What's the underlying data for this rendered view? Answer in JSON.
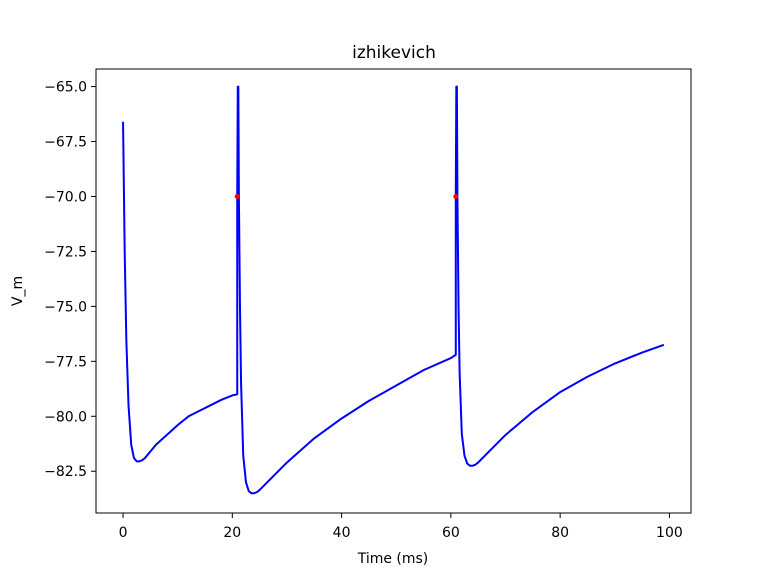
{
  "chart_data": {
    "type": "line",
    "title": "izhikevich",
    "xlabel": "Time (ms)",
    "ylabel": "V_m",
    "xlim": [
      -4.95,
      103.95
    ],
    "ylim": [
      -84.4,
      -64.2
    ],
    "xticks": [
      0,
      20,
      40,
      60,
      80,
      100
    ],
    "yticks": [
      -65.0,
      -67.5,
      -70.0,
      -72.5,
      -75.0,
      -77.5,
      -80.0,
      -82.5
    ],
    "xtick_labels": [
      "0",
      "20",
      "40",
      "60",
      "80",
      "100"
    ],
    "ytick_labels": [
      "−65.0",
      "−67.5",
      "−70.0",
      "−72.5",
      "−75.0",
      "−77.5",
      "−80.0",
      "−82.5"
    ],
    "grid": false,
    "series": [
      {
        "color": "#0000ff",
        "x": [
          0.0,
          0.3,
          0.6,
          1.0,
          1.5,
          2.0,
          2.5,
          3.0,
          3.5,
          4.0,
          5.0,
          6.0,
          8.0,
          10.0,
          12.0,
          14.0,
          16.0,
          18.0,
          20.0,
          20.9,
          20.9,
          21.0,
          21.1,
          21.2,
          21.4,
          21.6,
          22.0,
          22.5,
          23.0,
          23.5,
          24.0,
          24.5,
          25.0,
          26.0,
          28.0,
          30.0,
          35.0,
          40.0,
          45.0,
          50.0,
          55.0,
          60.0,
          60.9,
          60.9,
          61.0,
          61.1,
          61.2,
          61.4,
          61.6,
          62.0,
          62.5,
          63.0,
          63.5,
          64.0,
          64.5,
          65.0,
          66.0,
          68.0,
          70.0,
          75.0,
          80.0,
          85.0,
          90.0,
          95.0,
          99.0
        ],
        "y": [
          -66.6,
          -72.5,
          -76.5,
          -79.5,
          -81.3,
          -81.9,
          -82.05,
          -82.05,
          -82.0,
          -81.9,
          -81.6,
          -81.3,
          -80.85,
          -80.4,
          -80.0,
          -79.75,
          -79.5,
          -79.25,
          -79.05,
          -79.0,
          -70.0,
          -65.0,
          -65.0,
          -70.0,
          -75.0,
          -78.5,
          -81.8,
          -83.0,
          -83.4,
          -83.5,
          -83.5,
          -83.45,
          -83.35,
          -83.1,
          -82.6,
          -82.1,
          -81.0,
          -80.1,
          -79.3,
          -78.6,
          -77.9,
          -77.35,
          -77.2,
          -70.0,
          -65.0,
          -65.0,
          -70.0,
          -75.0,
          -78.0,
          -80.8,
          -81.8,
          -82.15,
          -82.25,
          -82.25,
          -82.2,
          -82.1,
          -81.85,
          -81.35,
          -80.85,
          -79.8,
          -78.9,
          -78.2,
          -77.6,
          -77.1,
          -76.75
        ]
      }
    ],
    "markers": {
      "color": "#ff0000",
      "points": [
        [
          20.9,
          -70.0
        ],
        [
          60.9,
          -70.0
        ]
      ]
    }
  }
}
